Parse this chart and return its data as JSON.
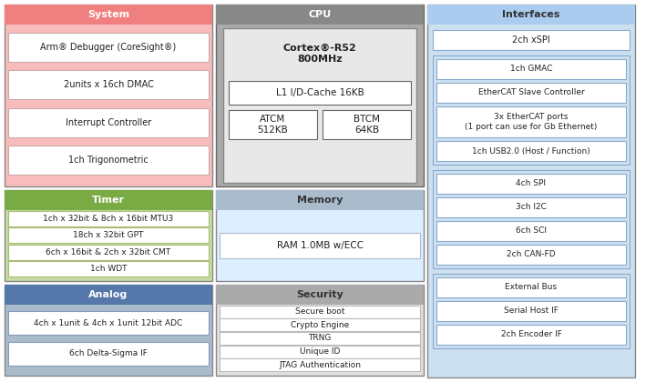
{
  "system_title": "System",
  "system_title_bg": "#f08080",
  "system_bg": "#f9bcbc",
  "system_items": [
    "Arm® Debugger (CoreSight®)",
    "2units x 16ch DMAC",
    "Interrupt Controller",
    "1ch Trigonometric"
  ],
  "timer_title": "Timer",
  "timer_title_bg": "#7aaa44",
  "timer_bg": "#c5dda0",
  "timer_items": [
    "1ch x 32bit & 8ch x 16bit MTU3",
    "18ch x 32bit GPT",
    "6ch x 16bit & 2ch x 32bit CMT",
    "1ch WDT"
  ],
  "analog_title": "Analog",
  "analog_title_bg": "#5577aa",
  "analog_bg": "#aabbcc",
  "analog_items": [
    "4ch x 1unit & 4ch x 1unit 12bit ADC",
    "6ch Delta-Sigma IF"
  ],
  "cpu_title": "CPU",
  "cpu_title_bg": "#888888",
  "cpu_bg": "#aaaaaa",
  "cpu_inner_bg": "#e8e8e8",
  "cpu_line1": "Cortex®-R52",
  "cpu_line2": "800MHz",
  "cpu_cache": "L1 I/D-Cache 16KB",
  "cpu_atcm": "ATCM\n512KB",
  "cpu_btcm": "BTCM\n64KB",
  "memory_title": "Memory",
  "memory_title_bg": "#aabbcc",
  "memory_bg": "#ddeeff",
  "memory_item": "RAM 1.0MB w/ECC",
  "security_title": "Security",
  "security_title_bg": "#aaaaaa",
  "security_bg": "#e0e0e0",
  "security_items": [
    "Secure boot",
    "Crypto Engine",
    "TRNG",
    "Unique ID",
    "JTAG Authentication"
  ],
  "interfaces_title": "Interfaces",
  "interfaces_title_bg": "#aaccee",
  "interfaces_bg": "#cce0f0",
  "interfaces_group1": [
    "2ch xSPI"
  ],
  "interfaces_group2": [
    "1ch GMAC",
    "EtherCAT Slave Controller",
    "3x EtherCAT ports\n(1 port can use for Gb Ethernet)",
    "1ch USB2.0 (Host / Function)"
  ],
  "interfaces_group3": [
    "4ch SPI",
    "3ch I2C",
    "6ch SCI",
    "2ch CAN-FD"
  ],
  "interfaces_group4": [
    "External Bus",
    "Serial Host IF",
    "2ch Encoder IF"
  ],
  "item_bg": "#ffffff",
  "item_border": "#aaaaaa"
}
